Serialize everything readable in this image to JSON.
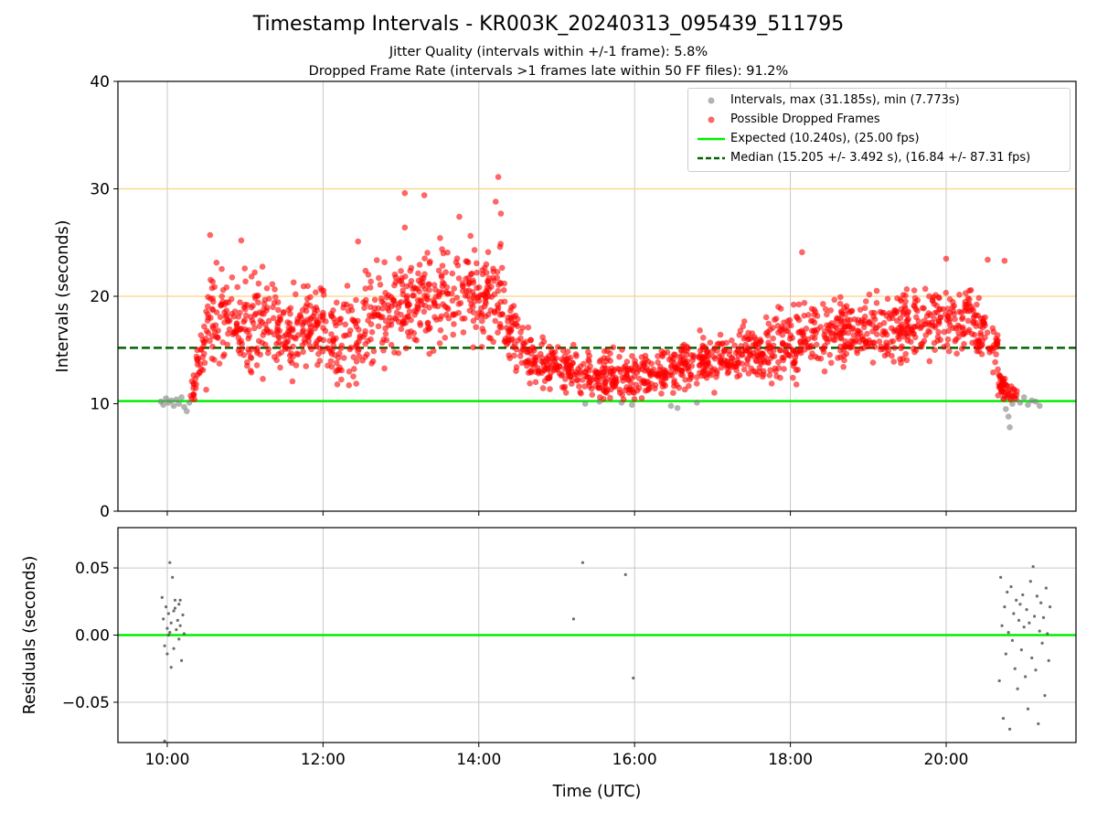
{
  "title": "Timestamp Intervals - KR003K_20240313_095439_511795",
  "subtitle_1": "Jitter Quality (intervals within +/-1 frame): 5.8%",
  "subtitle_2": "Dropped Frame Rate (intervals >1 frames late within 50 FF files): 91.2%",
  "colors": {
    "intervals": "#808080",
    "dropped": "#ff0000",
    "expected": "#00ee00",
    "median": "#006400",
    "threshold": "#ffd27f",
    "grid": "#c8c8c8"
  },
  "chart_data": [
    {
      "type": "scatter",
      "ylabel": "Intervals (seconds)",
      "xlim": [
        "09:22",
        "21:40"
      ],
      "ylim": [
        0,
        40
      ],
      "y_ticks": [
        "0",
        "10",
        "20",
        "30",
        "40"
      ],
      "grid": "x only",
      "legend_position": "top-right",
      "legend": [
        "Intervals, max (31.185s), min (7.773s)",
        "Possible Dropped Frames",
        "Expected (10.240s), (25.00 fps)",
        "Median (15.205 +/- 3.492 s), (16.84 +/- 87.31 fps)"
      ],
      "reference_lines": [
        {
          "name": "Expected (10.240s), (25.00 fps)",
          "y": 10.24,
          "style": "solid"
        },
        {
          "name": "Median (15.205 +/- 3.492 s), (16.84 +/- 87.31 fps)",
          "y": 15.205,
          "style": "dashed"
        },
        {
          "y": 20,
          "style": "threshold"
        },
        {
          "y": 30,
          "style": "threshold"
        }
      ],
      "series": [
        {
          "name": "Intervals, max (31.185s), min (7.773s)",
          "points": [
            [
              "09:55",
              10.2
            ],
            [
              "09:57",
              9.9
            ],
            [
              "09:59",
              10.5
            ],
            [
              "10:01",
              10.1
            ],
            [
              "10:03",
              10.3
            ],
            [
              "10:05",
              9.8
            ],
            [
              "10:07",
              10.4
            ],
            [
              "10:09",
              10.0
            ],
            [
              "10:11",
              10.6
            ],
            [
              "10:13",
              9.7
            ],
            [
              "10:15",
              9.3
            ],
            [
              "10:17",
              10.1
            ],
            [
              "15:22",
              10.0
            ],
            [
              "15:33",
              10.2
            ],
            [
              "15:50",
              10.1
            ],
            [
              "15:58",
              9.9
            ],
            [
              "16:28",
              9.8
            ],
            [
              "16:33",
              9.6
            ],
            [
              "16:48",
              10.1
            ],
            [
              "20:44",
              10.5
            ],
            [
              "20:46",
              9.5
            ],
            [
              "20:48",
              8.8
            ],
            [
              "20:49",
              7.8
            ],
            [
              "20:51",
              10.0
            ],
            [
              "20:54",
              10.4
            ],
            [
              "20:57",
              10.1
            ],
            [
              "21:00",
              10.6
            ],
            [
              "21:03",
              9.9
            ],
            [
              "21:06",
              10.3
            ],
            [
              "21:09",
              10.2
            ],
            [
              "21:12",
              9.8
            ]
          ]
        },
        {
          "name": "Possible Dropped Frames",
          "segments": [
            {
              "from": "10:18",
              "to": "10:30",
              "y_start": 11.0,
              "y_end": 16.0,
              "spread": 2.2
            },
            {
              "from": "10:30",
              "to": "11:30",
              "y_start": 18.5,
              "y_end": 17.0,
              "spread": 4.0
            },
            {
              "from": "11:30",
              "to": "12:30",
              "y_start": 17.0,
              "y_end": 16.5,
              "spread": 4.0
            },
            {
              "from": "12:30",
              "to": "13:30",
              "y_start": 17.0,
              "y_end": 20.5,
              "spread": 4.3
            },
            {
              "from": "13:30",
              "to": "14:20",
              "y_start": 20.5,
              "y_end": 20.0,
              "spread": 4.3
            },
            {
              "from": "14:20",
              "to": "14:40",
              "y_start": 17.0,
              "y_end": 14.5,
              "spread": 2.5
            },
            {
              "from": "14:40",
              "to": "15:40",
              "y_start": 14.0,
              "y_end": 12.5,
              "spread": 2.0
            },
            {
              "from": "15:40",
              "to": "16:40",
              "y_start": 12.5,
              "y_end": 13.5,
              "spread": 2.0
            },
            {
              "from": "16:40",
              "to": "17:40",
              "y_start": 13.5,
              "y_end": 14.8,
              "spread": 2.4
            },
            {
              "from": "17:40",
              "to": "18:40",
              "y_start": 15.0,
              "y_end": 17.0,
              "spread": 3.0
            },
            {
              "from": "18:40",
              "to": "20:20",
              "y_start": 16.5,
              "y_end": 18.0,
              "spread": 3.0
            },
            {
              "from": "20:20",
              "to": "20:40",
              "y_start": 17.5,
              "y_end": 15.0,
              "spread": 3.0
            },
            {
              "from": "20:40",
              "to": "20:55",
              "y_start": 12.0,
              "y_end": 10.5,
              "spread": 1.2
            }
          ],
          "notable_points": [
            [
              "14:15",
              31.1
            ],
            [
              "14:13",
              28.8
            ],
            [
              "14:17",
              27.7
            ],
            [
              "13:03",
              29.6
            ],
            [
              "13:18",
              29.4
            ],
            [
              "13:03",
              26.4
            ],
            [
              "13:45",
              27.4
            ],
            [
              "10:33",
              25.7
            ],
            [
              "10:57",
              25.2
            ],
            [
              "12:27",
              25.1
            ],
            [
              "18:09",
              24.1
            ],
            [
              "20:32",
              23.4
            ],
            [
              "20:00",
              23.5
            ],
            [
              "20:45",
              23.3
            ],
            [
              "10:30",
              11.3
            ]
          ]
        }
      ]
    },
    {
      "type": "scatter",
      "xlabel": "Time (UTC)",
      "ylabel": "Residuals (seconds)",
      "xlim": [
        "09:22",
        "21:40"
      ],
      "ylim": [
        -0.08,
        0.08
      ],
      "x_ticks": [
        "10:00",
        "12:00",
        "14:00",
        "16:00",
        "18:00",
        "20:00"
      ],
      "y_ticks": [
        "0.05",
        "0.00",
        "−0.05"
      ],
      "grid": "x and y",
      "reference_lines": [
        {
          "y": 0.0,
          "style": "solid"
        }
      ],
      "series": [
        {
          "points": [
            [
              "09:56",
              0.028
            ],
            [
              "09:57",
              0.012
            ],
            [
              "09:58",
              -0.008
            ],
            [
              "09:59",
              0.021
            ],
            [
              "10:00",
              0.005
            ],
            [
              "10:00",
              -0.014
            ],
            [
              "10:01",
              0.016
            ],
            [
              "10:02",
              0.002
            ],
            [
              "10:02",
              0.054
            ],
            [
              "10:03",
              0.009
            ],
            [
              "10:03",
              -0.024
            ],
            [
              "10:04",
              0.043
            ],
            [
              "10:05",
              0.018
            ],
            [
              "10:05",
              -0.01
            ],
            [
              "10:06",
              0.026
            ],
            [
              "10:07",
              0.004
            ],
            [
              "10:08",
              0.011
            ],
            [
              "10:09",
              -0.003
            ],
            [
              "10:09",
              0.023
            ],
            [
              "10:10",
              0.007
            ],
            [
              "10:11",
              -0.019
            ],
            [
              "10:12",
              0.015
            ],
            [
              "10:13",
              0.001
            ],
            [
              "09:58",
              -0.079
            ],
            [
              "10:01",
              0.0
            ],
            [
              "10:06",
              0.02
            ],
            [
              "10:10",
              0.026
            ],
            [
              "15:13",
              0.012
            ],
            [
              "15:20",
              0.054
            ],
            [
              "15:53",
              0.045
            ],
            [
              "15:59",
              -0.032
            ],
            [
              "20:41",
              -0.034
            ],
            [
              "20:42",
              0.043
            ],
            [
              "20:43",
              0.007
            ],
            [
              "20:44",
              -0.062
            ],
            [
              "20:45",
              0.021
            ],
            [
              "20:46",
              -0.014
            ],
            [
              "20:47",
              0.032
            ],
            [
              "20:48",
              0.002
            ],
            [
              "20:49",
              -0.07
            ],
            [
              "20:50",
              0.036
            ],
            [
              "20:51",
              -0.004
            ],
            [
              "20:52",
              0.016
            ],
            [
              "20:53",
              -0.025
            ],
            [
              "20:54",
              0.026
            ],
            [
              "20:55",
              -0.04
            ],
            [
              "20:56",
              0.011
            ],
            [
              "20:57",
              0.023
            ],
            [
              "20:58",
              -0.011
            ],
            [
              "20:59",
              0.03
            ],
            [
              "21:00",
              0.006
            ],
            [
              "21:01",
              -0.031
            ],
            [
              "21:02",
              0.019
            ],
            [
              "21:03",
              -0.055
            ],
            [
              "21:04",
              0.009
            ],
            [
              "21:05",
              0.04
            ],
            [
              "21:06",
              -0.017
            ],
            [
              "21:07",
              0.051
            ],
            [
              "21:08",
              0.014
            ],
            [
              "21:09",
              -0.026
            ],
            [
              "21:10",
              0.029
            ],
            [
              "21:11",
              -0.066
            ],
            [
              "21:12",
              0.003
            ],
            [
              "21:13",
              0.024
            ],
            [
              "21:14",
              -0.006
            ],
            [
              "21:15",
              0.013
            ],
            [
              "21:16",
              -0.045
            ],
            [
              "21:17",
              0.035
            ],
            [
              "21:18",
              0.001
            ],
            [
              "21:19",
              -0.019
            ],
            [
              "21:20",
              0.021
            ]
          ]
        }
      ]
    }
  ]
}
